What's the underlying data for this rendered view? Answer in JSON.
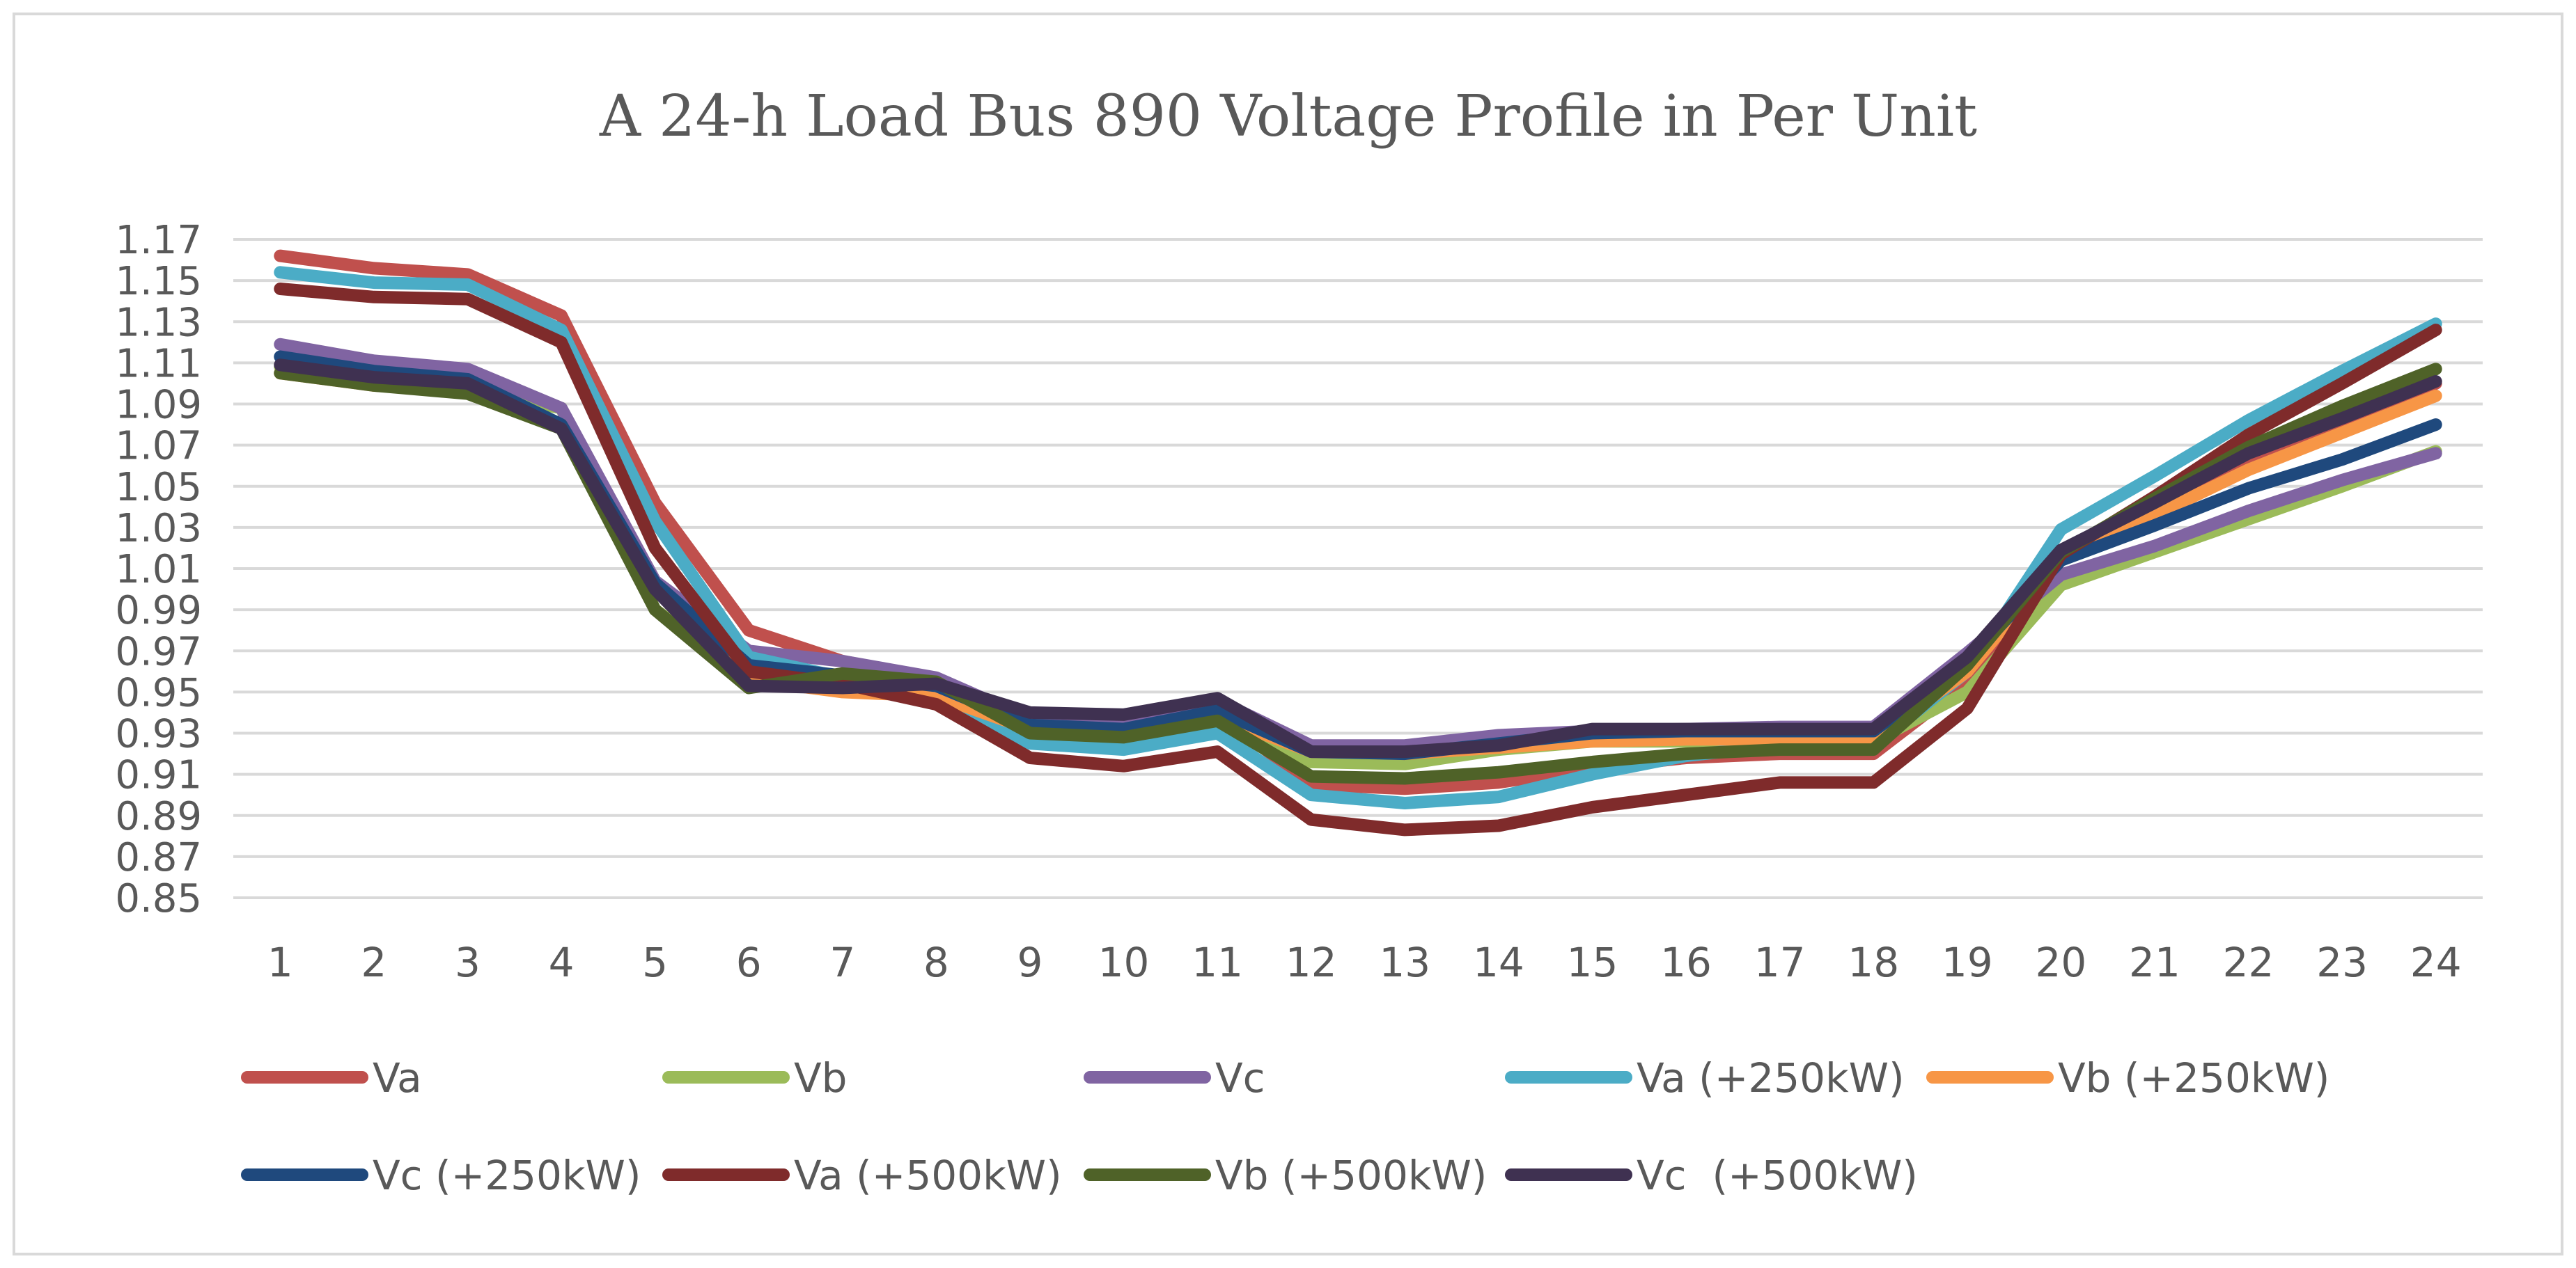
{
  "chart_data": {
    "type": "line",
    "title": "A 24-h Load Bus 890 Voltage Profile in Per Unit",
    "xlabel": "",
    "ylabel": "",
    "categories": [
      "1",
      "2",
      "3",
      "4",
      "5",
      "6",
      "7",
      "8",
      "9",
      "10",
      "11",
      "12",
      "13",
      "14",
      "15",
      "16",
      "17",
      "18",
      "19",
      "20",
      "21",
      "22",
      "23",
      "24"
    ],
    "yticks": [
      "1.17",
      "1.15",
      "1.13",
      "1.11",
      "1.09",
      "1.07",
      "1.05",
      "1.03",
      "1.01",
      "0.99",
      "0.97",
      "0.95",
      "0.93",
      "0.91",
      "0.89",
      "0.87",
      "0.85"
    ],
    "ylim": [
      0.85,
      1.17
    ],
    "grid": true,
    "legend_position": "bottom",
    "series": [
      {
        "name": "Va",
        "color": "#c0504d",
        "values": [
          1.162,
          1.156,
          1.153,
          1.133,
          1.042,
          0.98,
          0.965,
          0.956,
          0.932,
          0.93,
          0.94,
          0.905,
          0.903,
          0.906,
          0.913,
          0.918,
          0.92,
          0.92,
          0.955,
          1.018,
          1.04,
          1.06,
          1.078,
          1.1
        ]
      },
      {
        "name": "Vb",
        "color": "#9bbb59",
        "values": [
          1.108,
          1.1,
          1.097,
          1.088,
          0.99,
          0.956,
          0.958,
          0.955,
          0.932,
          0.93,
          0.936,
          0.916,
          0.915,
          0.922,
          0.926,
          0.926,
          0.926,
          0.926,
          0.95,
          1.002,
          1.018,
          1.034,
          1.05,
          1.067
        ]
      },
      {
        "name": "Vc",
        "color": "#8064a2",
        "values": [
          1.119,
          1.111,
          1.107,
          1.088,
          1.004,
          0.97,
          0.965,
          0.957,
          0.937,
          0.937,
          0.946,
          0.924,
          0.924,
          0.929,
          0.931,
          0.932,
          0.933,
          0.933,
          0.969,
          1.007,
          1.021,
          1.038,
          1.053,
          1.066
        ]
      },
      {
        "name": "Va (+250kW)",
        "color": "#4bacc6",
        "values": [
          1.154,
          1.149,
          1.148,
          1.126,
          1.033,
          0.967,
          0.957,
          0.949,
          0.925,
          0.922,
          0.93,
          0.9,
          0.896,
          0.899,
          0.91,
          0.919,
          0.924,
          0.924,
          0.96,
          1.029,
          1.055,
          1.082,
          1.106,
          1.129
        ]
      },
      {
        "name": "Vb (+250kW)",
        "color": "#f79646",
        "values": [
          1.105,
          1.099,
          1.096,
          1.08,
          1.0,
          0.956,
          0.95,
          0.948,
          0.932,
          0.93,
          0.938,
          0.921,
          0.92,
          0.923,
          0.926,
          0.927,
          0.927,
          0.927,
          0.96,
          1.015,
          1.036,
          1.058,
          1.076,
          1.094
        ]
      },
      {
        "name": "Vc (+250kW)",
        "color": "#1f497d",
        "values": [
          1.113,
          1.106,
          1.102,
          1.08,
          1.003,
          0.963,
          0.958,
          0.953,
          0.934,
          0.932,
          0.941,
          0.921,
          0.92,
          0.925,
          0.93,
          0.931,
          0.931,
          0.931,
          0.965,
          1.014,
          1.031,
          1.049,
          1.063,
          1.08
        ]
      },
      {
        "name": "Va (+500kW)",
        "color": "#7f2b2b",
        "values": [
          1.146,
          1.142,
          1.141,
          1.12,
          1.02,
          0.96,
          0.954,
          0.944,
          0.918,
          0.914,
          0.921,
          0.888,
          0.883,
          0.885,
          0.894,
          0.9,
          0.906,
          0.906,
          0.942,
          1.017,
          1.045,
          1.075,
          1.1,
          1.126
        ]
      },
      {
        "name": "Vb (+500kW)",
        "color": "#4f6228",
        "values": [
          1.105,
          1.099,
          1.095,
          1.078,
          0.99,
          0.952,
          0.959,
          0.955,
          0.93,
          0.928,
          0.936,
          0.909,
          0.908,
          0.911,
          0.916,
          0.92,
          0.922,
          0.922,
          0.963,
          1.018,
          1.044,
          1.069,
          1.089,
          1.107
        ]
      },
      {
        "name": "Vc  (+500kW)",
        "color": "#3f3151",
        "values": [
          1.109,
          1.103,
          1.1,
          1.078,
          1.0,
          0.953,
          0.952,
          0.954,
          0.94,
          0.939,
          0.947,
          0.921,
          0.921,
          0.924,
          0.932,
          0.932,
          0.932,
          0.932,
          0.967,
          1.019,
          1.042,
          1.066,
          1.083,
          1.101
        ]
      }
    ]
  }
}
